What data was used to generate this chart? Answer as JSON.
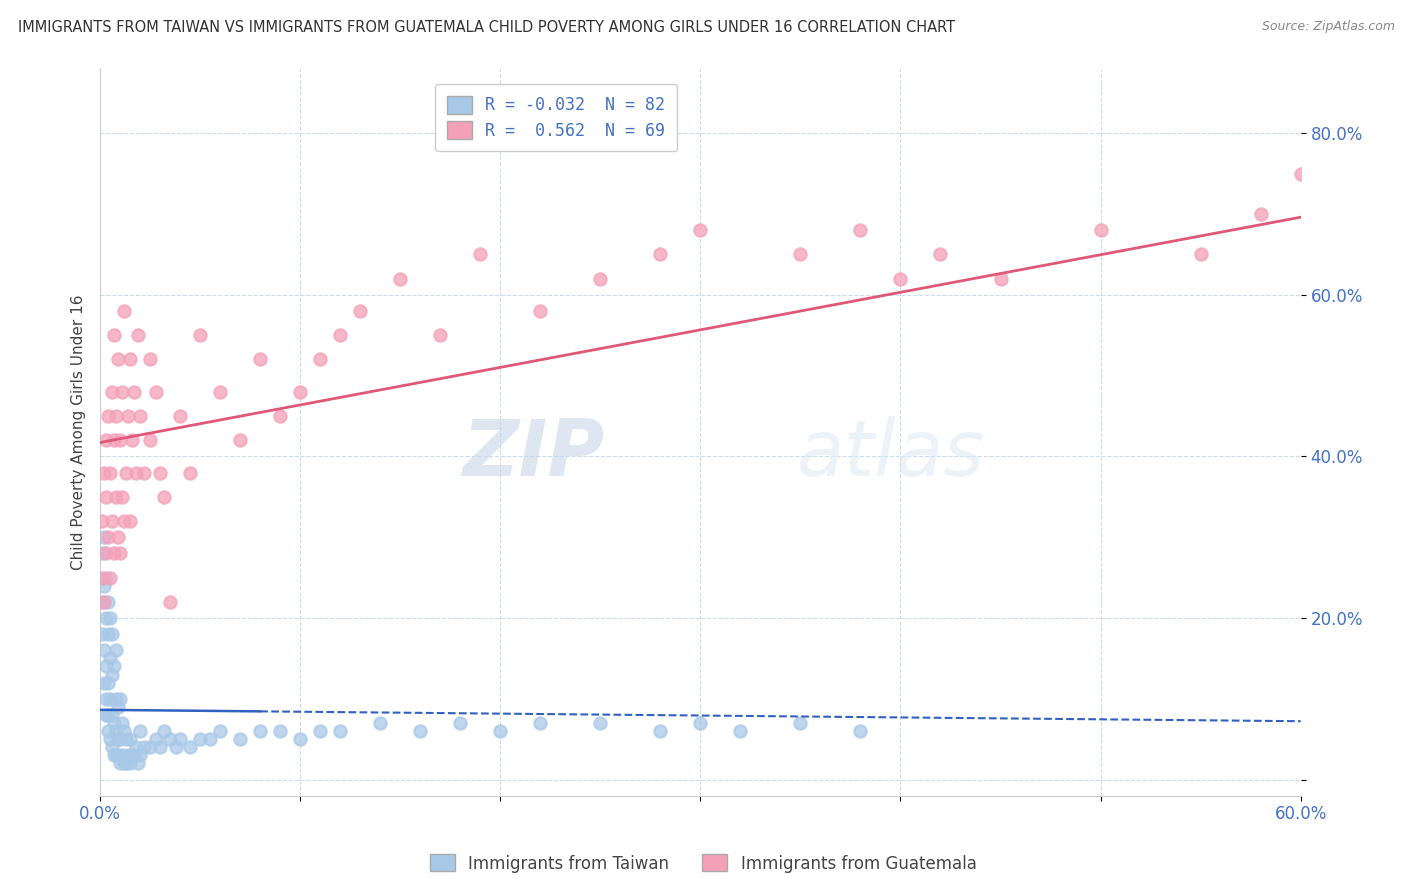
{
  "title": "IMMIGRANTS FROM TAIWAN VS IMMIGRANTS FROM GUATEMALA CHILD POVERTY AMONG GIRLS UNDER 16 CORRELATION CHART",
  "source": "Source: ZipAtlas.com",
  "ylabel": "Child Poverty Among Girls Under 16",
  "xlim": [
    0.0,
    0.6
  ],
  "ylim": [
    -0.02,
    0.88
  ],
  "yticks": [
    0.0,
    0.2,
    0.4,
    0.6,
    0.8
  ],
  "ytick_labels": [
    "",
    "20.0%",
    "40.0%",
    "60.0%",
    "80.0%"
  ],
  "xtick_labels": [
    "0.0%",
    "",
    "",
    "",
    "",
    "",
    "60.0%"
  ],
  "taiwan_R": -0.032,
  "taiwan_N": 82,
  "guatemala_R": 0.562,
  "guatemala_N": 69,
  "taiwan_color": "#a8c8e8",
  "guatemala_color": "#f4a0b8",
  "taiwan_line_color": "#3060c0",
  "guatemala_line_color": "#e05878",
  "taiwan_line_solid_end": 0.08,
  "legend_labels": [
    "Immigrants from Taiwan",
    "Immigrants from Guatemala"
  ],
  "background_color": "#ffffff",
  "grid_color": "#c8d8e8",
  "axis_color": "#4472c4",
  "taiwan_scatter_x": [
    0.001,
    0.001,
    0.001,
    0.002,
    0.002,
    0.002,
    0.002,
    0.003,
    0.003,
    0.003,
    0.003,
    0.003,
    0.004,
    0.004,
    0.004,
    0.004,
    0.004,
    0.005,
    0.005,
    0.005,
    0.005,
    0.006,
    0.006,
    0.006,
    0.006,
    0.007,
    0.007,
    0.007,
    0.008,
    0.008,
    0.008,
    0.008,
    0.009,
    0.009,
    0.009,
    0.01,
    0.01,
    0.01,
    0.011,
    0.011,
    0.012,
    0.012,
    0.013,
    0.013,
    0.014,
    0.015,
    0.015,
    0.016,
    0.017,
    0.018,
    0.019,
    0.02,
    0.02,
    0.022,
    0.025,
    0.028,
    0.03,
    0.032,
    0.035,
    0.038,
    0.04,
    0.045,
    0.05,
    0.055,
    0.06,
    0.07,
    0.08,
    0.09,
    0.1,
    0.11,
    0.12,
    0.14,
    0.16,
    0.18,
    0.2,
    0.22,
    0.25,
    0.28,
    0.3,
    0.32,
    0.35,
    0.38
  ],
  "taiwan_scatter_y": [
    0.18,
    0.22,
    0.28,
    0.12,
    0.16,
    0.24,
    0.3,
    0.08,
    0.14,
    0.2,
    0.25,
    0.1,
    0.06,
    0.12,
    0.18,
    0.22,
    0.08,
    0.05,
    0.1,
    0.15,
    0.2,
    0.04,
    0.08,
    0.13,
    0.18,
    0.03,
    0.07,
    0.14,
    0.03,
    0.06,
    0.1,
    0.16,
    0.03,
    0.05,
    0.09,
    0.02,
    0.05,
    0.1,
    0.03,
    0.07,
    0.02,
    0.06,
    0.02,
    0.05,
    0.03,
    0.02,
    0.05,
    0.03,
    0.03,
    0.04,
    0.02,
    0.03,
    0.06,
    0.04,
    0.04,
    0.05,
    0.04,
    0.06,
    0.05,
    0.04,
    0.05,
    0.04,
    0.05,
    0.05,
    0.06,
    0.05,
    0.06,
    0.06,
    0.05,
    0.06,
    0.06,
    0.07,
    0.06,
    0.07,
    0.06,
    0.07,
    0.07,
    0.06,
    0.07,
    0.06,
    0.07,
    0.06
  ],
  "guatemala_scatter_x": [
    0.001,
    0.001,
    0.002,
    0.002,
    0.003,
    0.003,
    0.003,
    0.004,
    0.004,
    0.005,
    0.005,
    0.006,
    0.006,
    0.007,
    0.007,
    0.007,
    0.008,
    0.008,
    0.009,
    0.009,
    0.01,
    0.01,
    0.011,
    0.011,
    0.012,
    0.012,
    0.013,
    0.014,
    0.015,
    0.015,
    0.016,
    0.017,
    0.018,
    0.019,
    0.02,
    0.022,
    0.025,
    0.025,
    0.028,
    0.03,
    0.032,
    0.035,
    0.04,
    0.045,
    0.05,
    0.06,
    0.07,
    0.08,
    0.09,
    0.1,
    0.11,
    0.12,
    0.13,
    0.15,
    0.17,
    0.19,
    0.22,
    0.25,
    0.28,
    0.3,
    0.35,
    0.38,
    0.4,
    0.42,
    0.45,
    0.5,
    0.55,
    0.58,
    0.6
  ],
  "guatemala_scatter_y": [
    0.25,
    0.32,
    0.22,
    0.38,
    0.28,
    0.35,
    0.42,
    0.3,
    0.45,
    0.25,
    0.38,
    0.32,
    0.48,
    0.28,
    0.42,
    0.55,
    0.35,
    0.45,
    0.3,
    0.52,
    0.28,
    0.42,
    0.35,
    0.48,
    0.32,
    0.58,
    0.38,
    0.45,
    0.32,
    0.52,
    0.42,
    0.48,
    0.38,
    0.55,
    0.45,
    0.38,
    0.42,
    0.52,
    0.48,
    0.38,
    0.35,
    0.22,
    0.45,
    0.38,
    0.55,
    0.48,
    0.42,
    0.52,
    0.45,
    0.48,
    0.52,
    0.55,
    0.58,
    0.62,
    0.55,
    0.65,
    0.58,
    0.62,
    0.65,
    0.68,
    0.65,
    0.68,
    0.62,
    0.65,
    0.62,
    0.68,
    0.65,
    0.7,
    0.75
  ]
}
